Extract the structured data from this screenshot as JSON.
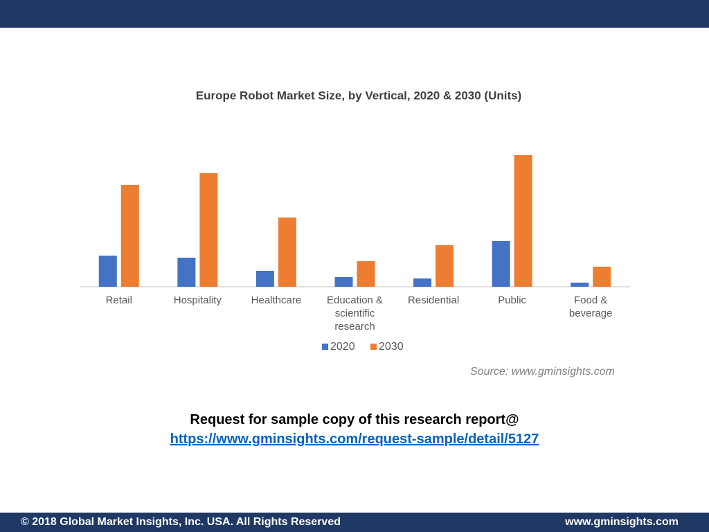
{
  "chart_data": {
    "type": "bar",
    "title": "Europe Robot Market Size, by Vertical, 2020 & 2030  (Units)",
    "categories": [
      "Retail",
      "Hospitality",
      "Healthcare",
      "Education & scientific research",
      "Residential",
      "Public",
      "Food & beverage"
    ],
    "series": [
      {
        "name": "2020",
        "color": "#4472c4",
        "values": [
          45,
          42,
          23,
          14,
          12,
          66,
          6
        ]
      },
      {
        "name": "2030",
        "color": "#ed7d31",
        "values": [
          147,
          164,
          100,
          37,
          60,
          190,
          29
        ]
      }
    ],
    "source": "Source:  www.gminsights.com"
  },
  "request": {
    "text": "Request for sample copy of this research report@",
    "link": "https://www.gminsights.com/request-sample/detail/5127"
  },
  "footer": {
    "copyright": "© 2018 Global Market Insights, Inc. USA. All Rights Reserved",
    "website": "www.gminsights.com"
  }
}
